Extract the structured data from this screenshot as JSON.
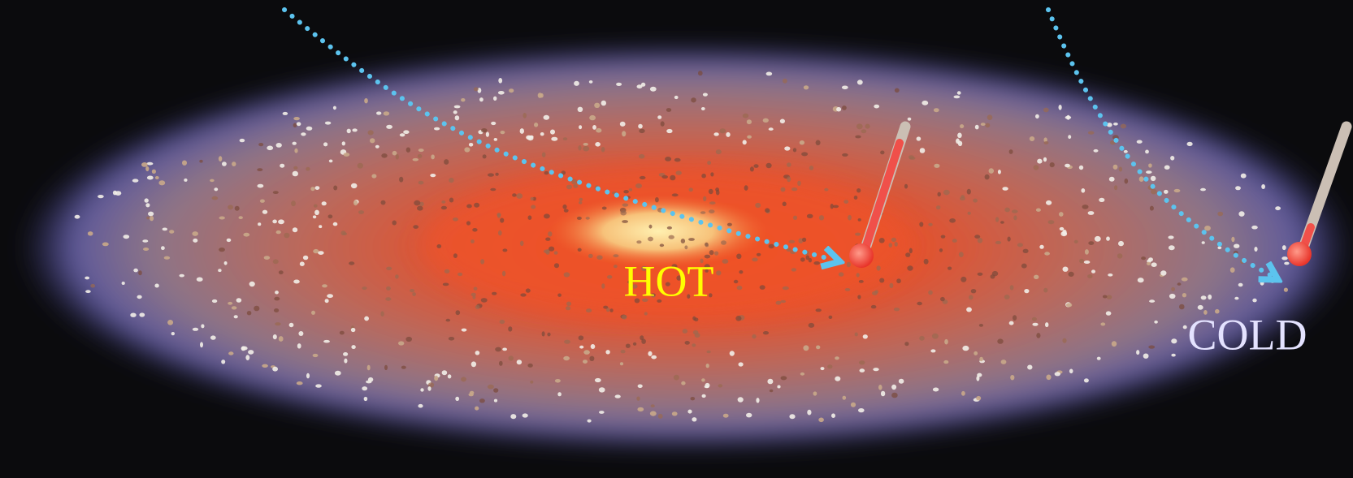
{
  "labels": {
    "hot": "HOT",
    "cold": "COLD"
  }
}
